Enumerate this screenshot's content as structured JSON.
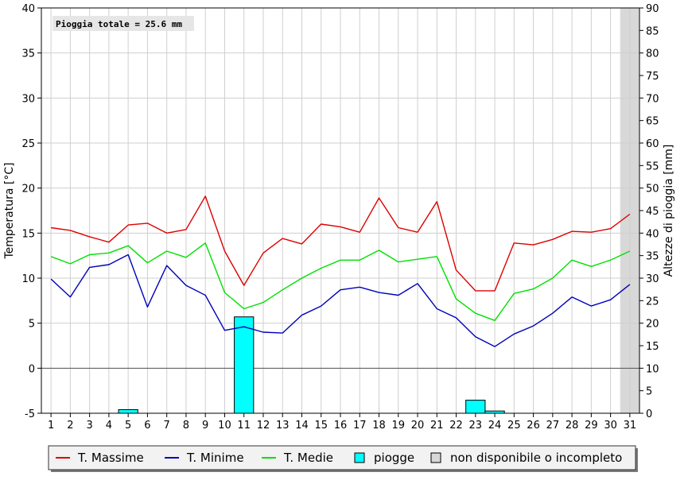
{
  "chart_data": {
    "type": "line",
    "annotation": "Pioggia totale = 25.6 mm",
    "ylabel": "Temperatura [°C]",
    "y2label": "Altezze di pioggia [mm]",
    "ylim": [
      -5,
      40
    ],
    "y2lim": [
      0,
      90
    ],
    "yticks": [
      -5,
      0,
      5,
      10,
      15,
      20,
      25,
      30,
      35,
      40
    ],
    "y2ticks": [
      0,
      5,
      10,
      15,
      20,
      25,
      30,
      35,
      40,
      45,
      50,
      55,
      60,
      65,
      70,
      75,
      80,
      85,
      90
    ],
    "x": [
      1,
      2,
      3,
      4,
      5,
      6,
      7,
      8,
      9,
      10,
      11,
      12,
      13,
      14,
      15,
      16,
      17,
      18,
      19,
      20,
      21,
      22,
      23,
      24,
      25,
      26,
      27,
      28,
      29,
      30,
      31
    ],
    "unavailable_days": [
      31
    ],
    "series": [
      {
        "name": "T. Massime",
        "color": "#dd0000",
        "values": [
          15.6,
          15.3,
          14.6,
          14.0,
          15.9,
          16.1,
          15.0,
          15.4,
          19.1,
          13.0,
          9.2,
          12.8,
          14.4,
          13.8,
          16.0,
          15.7,
          15.1,
          18.9,
          15.6,
          15.1,
          18.5,
          10.9,
          8.6,
          8.6,
          13.9,
          13.7,
          14.3,
          15.2,
          15.1,
          15.5,
          17.1
        ]
      },
      {
        "name": "T. Minime",
        "color": "#0000bb",
        "values": [
          9.9,
          7.9,
          11.2,
          11.5,
          12.6,
          6.8,
          11.4,
          9.2,
          8.1,
          4.2,
          4.6,
          4.0,
          3.9,
          5.9,
          6.9,
          8.7,
          9.0,
          8.4,
          8.1,
          9.4,
          6.6,
          5.6,
          3.5,
          2.4,
          3.8,
          4.7,
          6.1,
          7.9,
          6.9,
          7.6,
          9.3
        ]
      },
      {
        "name": "T. Medie",
        "color": "#00e000",
        "values": [
          12.4,
          11.6,
          12.6,
          12.8,
          13.6,
          11.7,
          13.0,
          12.3,
          13.9,
          8.4,
          6.6,
          7.3,
          8.7,
          10.0,
          11.1,
          12.0,
          12.0,
          13.1,
          11.8,
          12.1,
          12.4,
          7.7,
          6.1,
          5.3,
          8.3,
          8.8,
          10.0,
          12.0,
          11.3,
          12.0,
          13.0
        ]
      }
    ],
    "rain": {
      "name": "piogge",
      "color": "#00ffff",
      "values": [
        0,
        0,
        0,
        0,
        0.8,
        0,
        0,
        0,
        0,
        0,
        21.4,
        0,
        0,
        0,
        0,
        0,
        0,
        0,
        0,
        0,
        0,
        0,
        2.9,
        0.5,
        0,
        0,
        0,
        0,
        0,
        0,
        0
      ]
    },
    "legend": {
      "placement": "bottom",
      "items": [
        {
          "label": "T. Massime",
          "kind": "line",
          "color": "#dd0000"
        },
        {
          "label": "T. Minime",
          "kind": "line",
          "color": "#0000bb"
        },
        {
          "label": "T. Medie",
          "kind": "line",
          "color": "#00e000"
        },
        {
          "label": "piogge",
          "kind": "box",
          "color": "#00ffff"
        },
        {
          "label": "non disponibile o incompleto",
          "kind": "box",
          "color": "#d8d8d8"
        }
      ]
    },
    "grid": true
  }
}
